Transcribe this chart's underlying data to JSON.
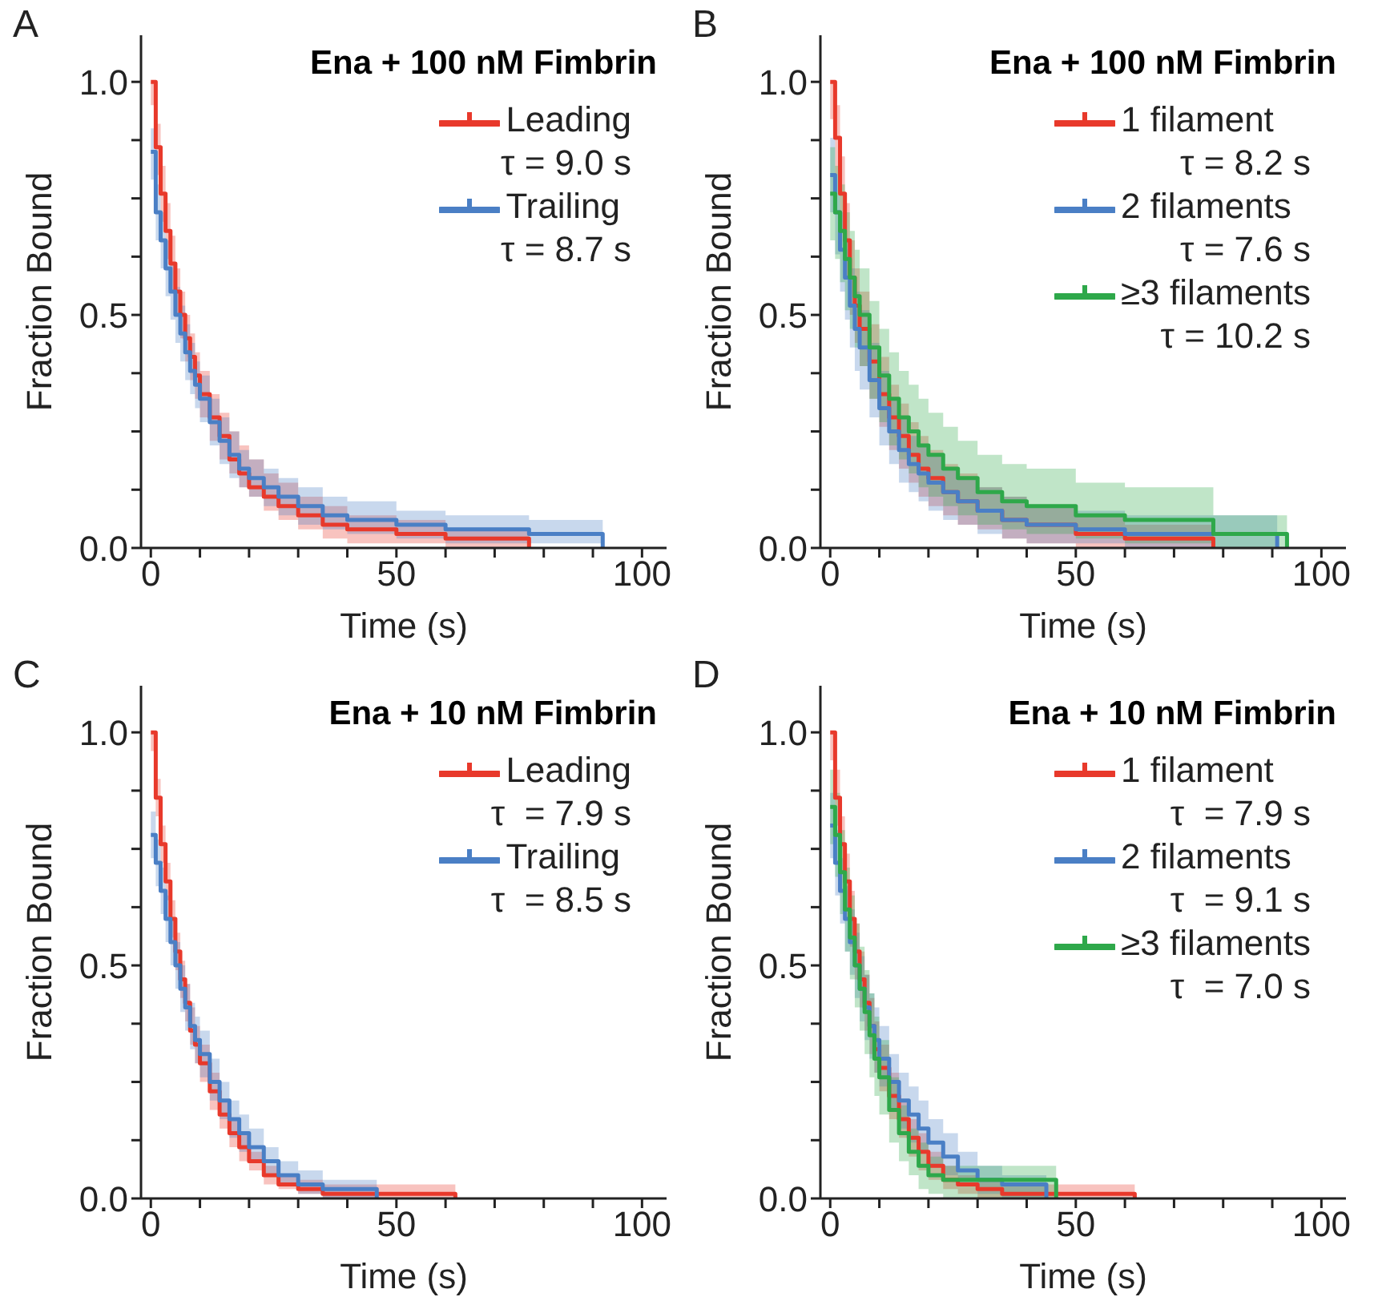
{
  "chart_data": [
    {
      "type": "step",
      "title": "Ena + 100 nM Fimbrin",
      "xlabel": "Time (s)",
      "ylabel": "Fraction Bound",
      "annotations": [
        "A",
        "τ = 9.0 s",
        "τ = 8.7 s"
      ],
      "legend": "top right",
      "xlim": [
        -2,
        105
      ],
      "ylim": [
        0,
        1.1
      ],
      "xticks": [
        0,
        {
          "value": 10,
          "label": null
        },
        {
          "value": 20,
          "label": null
        },
        {
          "value": 30,
          "label": null
        },
        {
          "value": 40,
          "label": null
        },
        50,
        {
          "value": 60,
          "label": null
        },
        {
          "value": 70,
          "label": null
        },
        {
          "value": 80,
          "label": null
        },
        {
          "value": 90,
          "label": null
        },
        100
      ],
      "yticks": [
        {
          "value": 0,
          "label": "0.0"
        },
        {
          "value": 0.125,
          "label": null
        },
        {
          "value": 0.25,
          "label": null
        },
        {
          "value": 0.375,
          "label": null
        },
        {
          "value": 0.5,
          "label": "0.5"
        },
        {
          "value": 0.625,
          "label": null
        },
        {
          "value": 0.75,
          "label": null
        },
        {
          "value": 0.875,
          "label": null
        },
        {
          "value": 1,
          "label": "1.0"
        }
      ],
      "x": [
        0,
        1,
        2,
        3,
        4,
        5,
        6,
        7,
        8,
        9,
        10,
        12,
        14,
        16,
        18,
        20,
        23,
        26,
        30,
        35,
        40,
        50,
        60,
        70,
        77,
        92
      ],
      "series": [
        {
          "name": "Leading",
          "color": "#e8392b",
          "values": [
            1.0,
            0.86,
            0.76,
            0.68,
            0.61,
            0.55,
            0.5,
            0.45,
            0.41,
            0.37,
            0.33,
            0.28,
            0.24,
            0.19,
            0.16,
            0.13,
            0.11,
            0.09,
            0.07,
            0.05,
            0.04,
            0.03,
            0.02,
            0.02,
            0.0,
            null
          ],
          "lower": [
            0.95,
            0.8,
            0.7,
            0.62,
            0.55,
            0.5,
            0.45,
            0.4,
            0.36,
            0.32,
            0.28,
            0.23,
            0.19,
            0.16,
            0.13,
            0.11,
            0.08,
            0.06,
            0.04,
            0.02,
            0.01,
            0.01,
            0.0,
            0.0,
            0.0,
            null
          ],
          "upper": [
            1.0,
            0.91,
            0.82,
            0.74,
            0.67,
            0.6,
            0.55,
            0.5,
            0.46,
            0.42,
            0.38,
            0.33,
            0.29,
            0.25,
            0.22,
            0.19,
            0.16,
            0.14,
            0.11,
            0.09,
            0.07,
            0.06,
            0.04,
            0.04,
            0.0,
            null
          ]
        },
        {
          "name": "Trailing",
          "color": "#4a7fc5",
          "values": [
            0.85,
            0.72,
            0.66,
            0.6,
            0.55,
            0.5,
            0.46,
            0.42,
            0.38,
            0.35,
            0.32,
            0.27,
            0.23,
            0.2,
            0.17,
            0.15,
            0.13,
            0.11,
            0.09,
            0.07,
            0.06,
            0.05,
            0.04,
            0.04,
            0.03,
            0.0
          ],
          "lower": [
            0.79,
            0.66,
            0.6,
            0.54,
            0.49,
            0.44,
            0.4,
            0.36,
            0.33,
            0.3,
            0.27,
            0.22,
            0.18,
            0.15,
            0.13,
            0.11,
            0.09,
            0.07,
            0.05,
            0.04,
            0.03,
            0.02,
            0.01,
            0.01,
            0.01,
            0.0
          ],
          "upper": [
            0.9,
            0.78,
            0.72,
            0.66,
            0.61,
            0.56,
            0.52,
            0.48,
            0.44,
            0.4,
            0.37,
            0.32,
            0.28,
            0.25,
            0.21,
            0.19,
            0.17,
            0.15,
            0.13,
            0.11,
            0.1,
            0.08,
            0.07,
            0.07,
            0.06,
            0.0
          ]
        }
      ]
    },
    {
      "type": "step",
      "title": "Ena + 100 nM Fimbrin",
      "xlabel": "Time (s)",
      "ylabel": "Fraction Bound",
      "annotations": [
        "B",
        "τ = 8.2 s",
        "τ = 7.6 s",
        "τ = 10.2 s"
      ],
      "legend": "top right",
      "xlim": [
        -2,
        105
      ],
      "ylim": [
        0,
        1.1
      ],
      "xticks": [
        0,
        {
          "value": 10,
          "label": null
        },
        {
          "value": 20,
          "label": null
        },
        {
          "value": 30,
          "label": null
        },
        {
          "value": 40,
          "label": null
        },
        50,
        {
          "value": 60,
          "label": null
        },
        {
          "value": 70,
          "label": null
        },
        {
          "value": 80,
          "label": null
        },
        {
          "value": 90,
          "label": null
        },
        100
      ],
      "yticks": [
        {
          "value": 0,
          "label": "0.0"
        },
        {
          "value": 0.125,
          "label": null
        },
        {
          "value": 0.25,
          "label": null
        },
        {
          "value": 0.375,
          "label": null
        },
        {
          "value": 0.5,
          "label": "0.5"
        },
        {
          "value": 0.625,
          "label": null
        },
        {
          "value": 0.75,
          "label": null
        },
        {
          "value": 0.875,
          "label": null
        },
        {
          "value": 1,
          "label": "1.0"
        }
      ],
      "x": [
        0,
        1,
        2,
        3,
        4,
        5,
        6,
        8,
        10,
        12,
        14,
        16,
        18,
        20,
        23,
        26,
        30,
        35,
        40,
        50,
        60,
        70,
        78,
        91,
        93
      ],
      "series": [
        {
          "name": "1 filament",
          "color": "#e8392b",
          "values": [
            1.0,
            0.88,
            0.76,
            0.66,
            0.58,
            0.52,
            0.47,
            0.4,
            0.33,
            0.28,
            0.24,
            0.2,
            0.17,
            0.15,
            0.12,
            0.1,
            0.08,
            0.06,
            0.05,
            0.03,
            0.02,
            0.02,
            0.0,
            null,
            null
          ],
          "lower": [
            0.92,
            0.8,
            0.68,
            0.58,
            0.5,
            0.44,
            0.39,
            0.32,
            0.26,
            0.21,
            0.17,
            0.14,
            0.11,
            0.09,
            0.07,
            0.05,
            0.04,
            0.02,
            0.01,
            0.0,
            0.0,
            0.0,
            0.0,
            null,
            null
          ],
          "upper": [
            1.0,
            0.95,
            0.84,
            0.74,
            0.66,
            0.6,
            0.55,
            0.48,
            0.41,
            0.35,
            0.31,
            0.27,
            0.24,
            0.21,
            0.18,
            0.16,
            0.13,
            0.11,
            0.09,
            0.07,
            0.05,
            0.05,
            0.0,
            null,
            null
          ]
        },
        {
          "name": "2 filaments",
          "color": "#4a7fc5",
          "values": [
            0.8,
            0.72,
            0.64,
            0.58,
            0.52,
            0.47,
            0.43,
            0.36,
            0.3,
            0.25,
            0.21,
            0.18,
            0.16,
            0.14,
            0.12,
            0.1,
            0.08,
            0.06,
            0.05,
            0.04,
            0.03,
            0.03,
            0.03,
            0.0,
            null
          ],
          "lower": [
            0.72,
            0.63,
            0.55,
            0.49,
            0.43,
            0.38,
            0.34,
            0.28,
            0.22,
            0.18,
            0.14,
            0.12,
            0.1,
            0.08,
            0.06,
            0.05,
            0.03,
            0.02,
            0.01,
            0.01,
            0.0,
            0.0,
            0.0,
            0.0,
            null
          ],
          "upper": [
            0.88,
            0.8,
            0.72,
            0.66,
            0.6,
            0.55,
            0.51,
            0.44,
            0.38,
            0.32,
            0.28,
            0.24,
            0.22,
            0.2,
            0.17,
            0.15,
            0.13,
            0.11,
            0.09,
            0.08,
            0.07,
            0.07,
            0.07,
            0.0,
            null
          ]
        },
        {
          "name": "≥3 filaments",
          "color": "#2ea84a",
          "values": [
            0.76,
            0.72,
            0.68,
            0.62,
            0.58,
            0.54,
            0.5,
            0.43,
            0.37,
            0.32,
            0.28,
            0.25,
            0.22,
            0.2,
            0.17,
            0.15,
            0.12,
            0.1,
            0.09,
            0.07,
            0.06,
            0.06,
            0.03,
            0.03,
            0.0
          ],
          "lower": [
            0.66,
            0.62,
            0.57,
            0.51,
            0.47,
            0.43,
            0.39,
            0.32,
            0.27,
            0.22,
            0.19,
            0.16,
            0.13,
            0.11,
            0.09,
            0.07,
            0.05,
            0.04,
            0.03,
            0.02,
            0.01,
            0.01,
            0.0,
            0.0,
            0.0
          ],
          "upper": [
            0.86,
            0.82,
            0.78,
            0.72,
            0.68,
            0.64,
            0.6,
            0.53,
            0.47,
            0.42,
            0.38,
            0.35,
            0.32,
            0.29,
            0.26,
            0.23,
            0.2,
            0.18,
            0.17,
            0.14,
            0.13,
            0.13,
            0.07,
            0.07,
            0.0
          ]
        }
      ]
    },
    {
      "type": "step",
      "title": "Ena + 10 nM Fimbrin",
      "xlabel": "Time (s)",
      "ylabel": "Fraction Bound",
      "annotations": [
        "C",
        "τ  = 7.9 s",
        "τ  = 8.5 s"
      ],
      "legend": "top right",
      "xlim": [
        -2,
        105
      ],
      "ylim": [
        0,
        1.1
      ],
      "xticks": [
        0,
        {
          "value": 10,
          "label": null
        },
        {
          "value": 20,
          "label": null
        },
        {
          "value": 30,
          "label": null
        },
        {
          "value": 40,
          "label": null
        },
        50,
        {
          "value": 60,
          "label": null
        },
        {
          "value": 70,
          "label": null
        },
        {
          "value": 80,
          "label": null
        },
        {
          "value": 90,
          "label": null
        },
        100
      ],
      "yticks": [
        {
          "value": 0,
          "label": "0.0"
        },
        {
          "value": 0.125,
          "label": null
        },
        {
          "value": 0.25,
          "label": null
        },
        {
          "value": 0.375,
          "label": null
        },
        {
          "value": 0.5,
          "label": "0.5"
        },
        {
          "value": 0.625,
          "label": null
        },
        {
          "value": 0.75,
          "label": null
        },
        {
          "value": 0.875,
          "label": null
        },
        {
          "value": 1,
          "label": "1.0"
        }
      ],
      "x": [
        0,
        1,
        2,
        3,
        4,
        5,
        6,
        7,
        8,
        9,
        10,
        12,
        14,
        16,
        18,
        20,
        23,
        26,
        30,
        35,
        40,
        46,
        62
      ],
      "series": [
        {
          "name": "Leading",
          "color": "#e8392b",
          "values": [
            1.0,
            0.86,
            0.76,
            0.68,
            0.6,
            0.53,
            0.47,
            0.42,
            0.36,
            0.33,
            0.29,
            0.23,
            0.18,
            0.14,
            0.11,
            0.08,
            0.05,
            0.03,
            0.02,
            0.01,
            0.01,
            0.01,
            0.0
          ],
          "lower": [
            0.96,
            0.82,
            0.72,
            0.64,
            0.56,
            0.49,
            0.43,
            0.38,
            0.33,
            0.29,
            0.25,
            0.19,
            0.15,
            0.11,
            0.08,
            0.06,
            0.03,
            0.02,
            0.01,
            0.0,
            0.0,
            0.0,
            0.0
          ],
          "upper": [
            1.0,
            0.9,
            0.8,
            0.72,
            0.64,
            0.57,
            0.51,
            0.46,
            0.41,
            0.37,
            0.33,
            0.27,
            0.21,
            0.17,
            0.14,
            0.1,
            0.07,
            0.05,
            0.04,
            0.03,
            0.03,
            0.03,
            0.0
          ]
        },
        {
          "name": "Trailing",
          "color": "#4a7fc5",
          "values": [
            0.78,
            0.72,
            0.66,
            0.6,
            0.55,
            0.5,
            0.45,
            0.41,
            0.37,
            0.34,
            0.31,
            0.25,
            0.21,
            0.17,
            0.14,
            0.11,
            0.08,
            0.05,
            0.03,
            0.02,
            0.02,
            0.0,
            null
          ],
          "lower": [
            0.73,
            0.67,
            0.61,
            0.55,
            0.5,
            0.45,
            0.4,
            0.36,
            0.32,
            0.29,
            0.26,
            0.21,
            0.17,
            0.13,
            0.1,
            0.08,
            0.05,
            0.03,
            0.01,
            0.0,
            0.0,
            0.0,
            null
          ],
          "upper": [
            0.83,
            0.77,
            0.71,
            0.65,
            0.6,
            0.55,
            0.5,
            0.46,
            0.42,
            0.39,
            0.36,
            0.3,
            0.25,
            0.21,
            0.18,
            0.15,
            0.11,
            0.08,
            0.06,
            0.04,
            0.04,
            0.0,
            null
          ]
        }
      ]
    },
    {
      "type": "step",
      "title": "Ena + 10 nM Fimbrin",
      "xlabel": "Time (s)",
      "ylabel": "Fraction Bound",
      "annotations": [
        "D",
        "τ  = 7.9 s",
        "τ  = 9.1 s",
        "τ  = 7.0 s"
      ],
      "legend": "top right",
      "xlim": [
        -2,
        105
      ],
      "ylim": [
        0,
        1.1
      ],
      "xticks": [
        0,
        {
          "value": 10,
          "label": null
        },
        {
          "value": 20,
          "label": null
        },
        {
          "value": 30,
          "label": null
        },
        {
          "value": 40,
          "label": null
        },
        50,
        {
          "value": 60,
          "label": null
        },
        {
          "value": 70,
          "label": null
        },
        {
          "value": 80,
          "label": null
        },
        {
          "value": 90,
          "label": null
        },
        100
      ],
      "yticks": [
        {
          "value": 0,
          "label": "0.0"
        },
        {
          "value": 0.125,
          "label": null
        },
        {
          "value": 0.25,
          "label": null
        },
        {
          "value": 0.375,
          "label": null
        },
        {
          "value": 0.5,
          "label": "0.5"
        },
        {
          "value": 0.625,
          "label": null
        },
        {
          "value": 0.75,
          "label": null
        },
        {
          "value": 0.875,
          "label": null
        },
        {
          "value": 1,
          "label": "1.0"
        }
      ],
      "x": [
        0,
        1,
        2,
        3,
        4,
        5,
        6,
        7,
        8,
        9,
        10,
        12,
        14,
        16,
        18,
        20,
        23,
        26,
        30,
        35,
        44,
        46,
        62
      ],
      "series": [
        {
          "name": "1 filament",
          "color": "#e8392b",
          "values": [
            1.0,
            0.86,
            0.76,
            0.68,
            0.6,
            0.53,
            0.47,
            0.42,
            0.37,
            0.32,
            0.28,
            0.22,
            0.17,
            0.13,
            0.1,
            0.07,
            0.04,
            0.03,
            0.02,
            0.01,
            0.01,
            0.01,
            0.0
          ],
          "lower": [
            0.94,
            0.8,
            0.7,
            0.62,
            0.54,
            0.47,
            0.41,
            0.36,
            0.31,
            0.27,
            0.23,
            0.17,
            0.13,
            0.09,
            0.06,
            0.04,
            0.02,
            0.01,
            0.0,
            0.0,
            0.0,
            0.0,
            0.0
          ],
          "upper": [
            1.0,
            0.92,
            0.82,
            0.74,
            0.66,
            0.59,
            0.53,
            0.48,
            0.43,
            0.38,
            0.33,
            0.27,
            0.21,
            0.17,
            0.14,
            0.1,
            0.07,
            0.05,
            0.04,
            0.03,
            0.03,
            0.03,
            0.0
          ]
        },
        {
          "name": "2 filaments",
          "color": "#4a7fc5",
          "values": [
            0.8,
            0.72,
            0.66,
            0.6,
            0.55,
            0.5,
            0.45,
            0.41,
            0.37,
            0.34,
            0.3,
            0.25,
            0.21,
            0.18,
            0.15,
            0.12,
            0.09,
            0.06,
            0.04,
            0.03,
            0.0,
            null,
            null
          ],
          "lower": [
            0.73,
            0.65,
            0.59,
            0.53,
            0.48,
            0.43,
            0.38,
            0.34,
            0.3,
            0.27,
            0.24,
            0.19,
            0.15,
            0.12,
            0.1,
            0.07,
            0.05,
            0.03,
            0.01,
            0.0,
            0.0,
            null,
            null
          ],
          "upper": [
            0.87,
            0.79,
            0.73,
            0.67,
            0.62,
            0.57,
            0.52,
            0.48,
            0.44,
            0.41,
            0.37,
            0.31,
            0.27,
            0.24,
            0.21,
            0.17,
            0.14,
            0.1,
            0.07,
            0.05,
            0.0,
            null,
            null
          ]
        },
        {
          "name": "≥3 filaments",
          "color": "#2ea84a",
          "values": [
            0.84,
            0.78,
            0.7,
            0.62,
            0.56,
            0.5,
            0.45,
            0.4,
            0.35,
            0.3,
            0.26,
            0.19,
            0.14,
            0.1,
            0.07,
            0.05,
            0.04,
            0.04,
            0.04,
            0.04,
            0.04,
            0.0,
            null
          ],
          "lower": [
            0.76,
            0.69,
            0.61,
            0.53,
            0.47,
            0.41,
            0.36,
            0.31,
            0.26,
            0.22,
            0.18,
            0.12,
            0.08,
            0.05,
            0.02,
            0.01,
            0.0,
            0.0,
            0.0,
            0.0,
            0.0,
            0.0,
            null
          ],
          "upper": [
            0.92,
            0.87,
            0.79,
            0.71,
            0.65,
            0.59,
            0.54,
            0.49,
            0.44,
            0.39,
            0.34,
            0.26,
            0.2,
            0.15,
            0.12,
            0.09,
            0.07,
            0.07,
            0.07,
            0.07,
            0.07,
            0.0,
            null
          ]
        }
      ]
    }
  ]
}
